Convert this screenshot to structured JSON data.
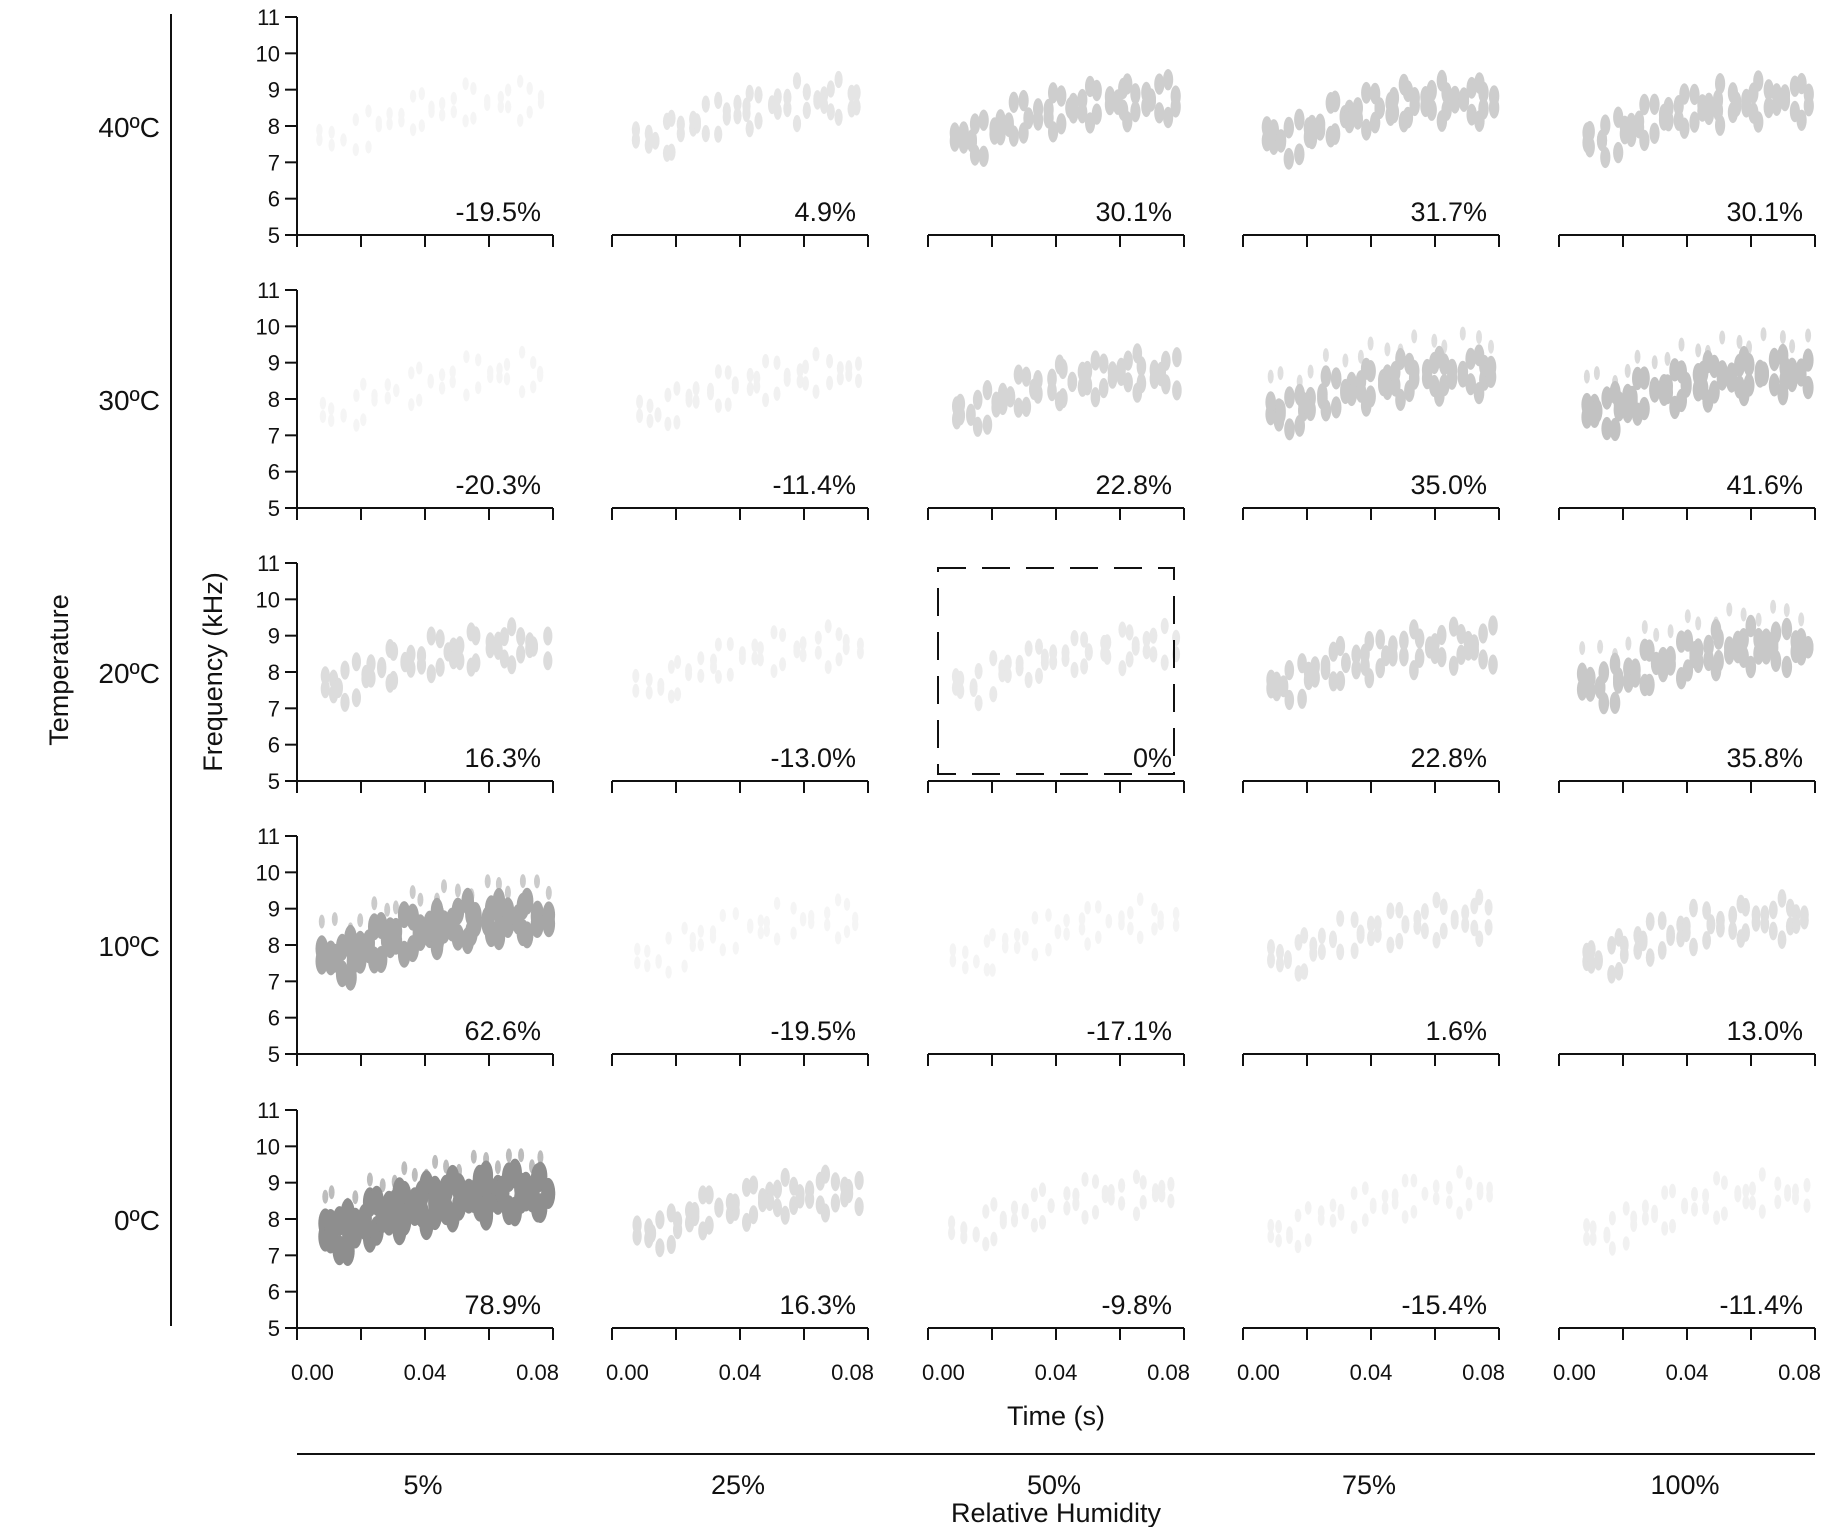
{
  "chart_data": {
    "type": "heatmap",
    "description_panels": "spectrogram grid",
    "row_axis_title": "Temperature",
    "col_axis_title": "Relative Humidity",
    "x_axis_title": "Time (s)",
    "y_axis_title": "Frequency (kHz)",
    "rows": [
      "40ºC",
      "30ºC",
      "20ºC",
      "10ºC",
      "0ºC"
    ],
    "cols": [
      "5%",
      "25%",
      "50%",
      "75%",
      "100%"
    ],
    "x_ticks": [
      "0.00",
      "0.04",
      "0.08"
    ],
    "x_range": [
      0,
      0.08
    ],
    "y_ticks": [
      "5",
      "6",
      "7",
      "8",
      "9",
      "10",
      "11"
    ],
    "y_range": [
      5,
      11
    ],
    "reference_cell": {
      "row": 2,
      "col": 2
    },
    "cells": [
      [
        "-19.5%",
        "4.9%",
        "30.1%",
        "31.7%",
        "30.1%"
      ],
      [
        "-20.3%",
        "-11.4%",
        "22.8%",
        "35.0%",
        "41.6%"
      ],
      [
        "16.3%",
        "-13.0%",
        "0%",
        "22.8%",
        "35.8%"
      ],
      [
        "62.6%",
        "-19.5%",
        "-17.1%",
        "1.6%",
        "13.0%"
      ],
      [
        "78.9%",
        "16.3%",
        "-9.8%",
        "-15.4%",
        "-11.4%"
      ]
    ],
    "cell_values": [
      [
        -19.5,
        4.9,
        30.1,
        31.7,
        30.1
      ],
      [
        -20.3,
        -11.4,
        22.8,
        35.0,
        41.6
      ],
      [
        16.3,
        -13.0,
        0,
        22.8,
        35.8
      ],
      [
        62.6,
        -19.5,
        -17.1,
        1.6,
        13.0
      ],
      [
        78.9,
        16.3,
        -9.8,
        -15.4,
        -11.4
      ]
    ]
  }
}
